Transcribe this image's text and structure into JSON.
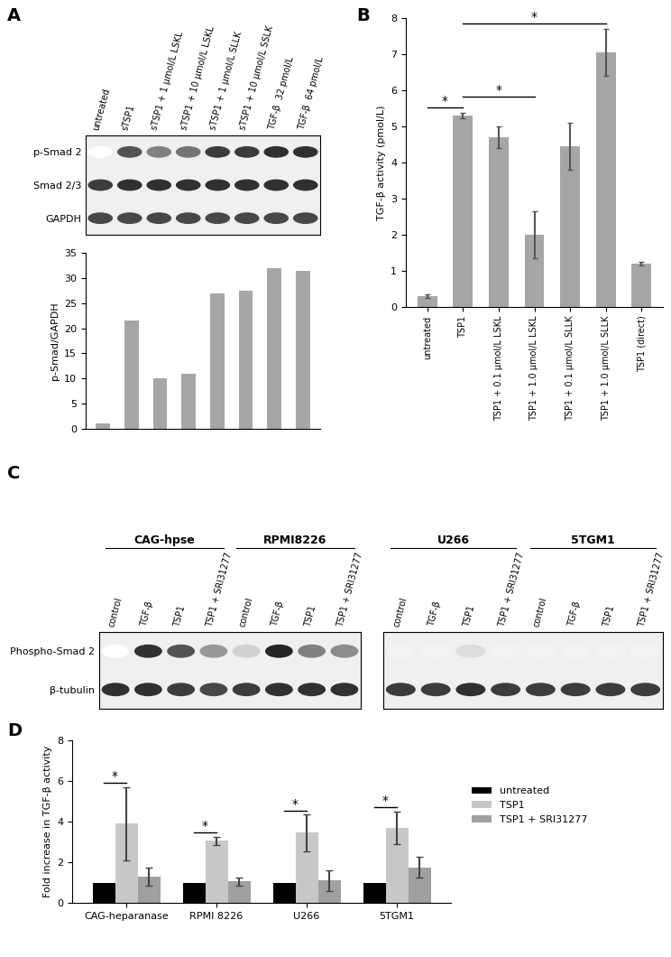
{
  "chart_data": [
    {
      "panel": "A",
      "type": "blot",
      "categories": [
        "untreated",
        "sTSP1",
        "sTSP1 + 1 µmol/L LSKL",
        "sTSP1 + 10 µmol/L LSKL",
        "sTSP1 + 1 µmol/L SLLK",
        "sTSP1 + 10 µmol/L SSLK",
        "TGF-β  32 pmol/L",
        "TGF-β  64 pmol/L"
      ],
      "series": [
        {
          "name": "p-Smad 2",
          "values": [
            0.0,
            0.75,
            0.55,
            0.6,
            0.85,
            0.85,
            0.9,
            0.9
          ]
        },
        {
          "name": "Smad 2/3",
          "values": [
            0.85,
            0.9,
            0.9,
            0.9,
            0.9,
            0.9,
            0.9,
            0.9
          ]
        },
        {
          "name": "GAPDH",
          "values": [
            0.8,
            0.8,
            0.8,
            0.8,
            0.8,
            0.8,
            0.8,
            0.8
          ]
        }
      ]
    },
    {
      "type": "bar",
      "y_label": "p-Smad/GAPDH",
      "categories": [
        null,
        null,
        null,
        null,
        null,
        null,
        null,
        null
      ],
      "values": [
        1,
        21.5,
        10,
        11,
        27,
        27.5,
        32,
        31.5
      ],
      "color": "#a6a6a6",
      "ylim": [
        0,
        35
      ],
      "yticks": [
        0,
        5,
        10,
        15,
        20,
        25,
        30,
        35
      ],
      "tick_labels": "y"
    },
    {
      "panel": "B",
      "type": "bar",
      "y_label": "TGF-β activity (pmol/L)",
      "categories": [
        "untreated",
        "TSP1",
        "TSP1 + 0.1 µmol/L LSKL",
        "TSP1 + 1.0 µmol/L LSKL",
        "TSP1 + 0.1 µmol/L SLLK",
        "TSP1 + 1.0 µmol/L SLLK",
        "TSP1 (direct)"
      ],
      "values": [
        0.3,
        5.3,
        4.7,
        2.0,
        4.45,
        7.05,
        1.2
      ],
      "errors": [
        0.05,
        0.08,
        0.3,
        0.65,
        0.65,
        0.65,
        0.05
      ],
      "color": "#a6a6a6",
      "ylim": [
        0,
        8
      ],
      "yticks": [
        0,
        1,
        2,
        3,
        4,
        5,
        6,
        7,
        8
      ],
      "significance": {
        "label": "*",
        "pairs": [
          [
            0,
            1
          ],
          [
            1,
            3
          ],
          [
            1,
            5
          ]
        ]
      }
    },
    {
      "panel": "C",
      "type": "blot",
      "categories": [
        "control",
        "TGF-β",
        "TSP1",
        "TSP1 + SRI31277"
      ],
      "images": [
        [
          {
            "name": "CAG-hpse",
            "series": [
              {
                "name": "Phospho-Smad 2",
                "values": [
                  0.0,
                  0.9,
                  0.75,
                  0.45
                ]
              },
              {
                "name": "β-tubulin",
                "values": [
                  0.9,
                  0.9,
                  0.85,
                  0.8
                ]
              }
            ]
          },
          {
            "name": "RPMI8226",
            "series": [
              {
                "name": "Phospho-Smad 2",
                "values": [
                  0.2,
                  0.95,
                  0.55,
                  0.5
                ]
              },
              {
                "name": "β-tubulin",
                "values": [
                  0.85,
                  0.9,
                  0.9,
                  0.9
                ]
              }
            ]
          }
        ],
        [
          {
            "name": "U266",
            "series": [
              {
                "name": "Phospho-Smad 2",
                "values": [
                  0.05,
                  0.05,
                  0.15,
                  0.05
                ]
              },
              {
                "name": "β-tubulin",
                "values": [
                  0.85,
                  0.85,
                  0.9,
                  0.85
                ]
              }
            ]
          },
          {
            "name": "5TGM1",
            "series": [
              {
                "name": "Phospho-Smad 2",
                "values": [
                  0.05,
                  0.05,
                  0.05,
                  0.05
                ]
              },
              {
                "name": "β-tubulin",
                "values": [
                  0.85,
                  0.85,
                  0.85,
                  0.85
                ]
              }
            ]
          }
        ]
      ]
    },
    {
      "panel": "D",
      "type": "bar",
      "y_label": "Fold increase in TGF-β activity",
      "categories": [
        "CAG-heparanase",
        "RPMI 8226",
        "U266",
        "5TGM1"
      ],
      "series": [
        {
          "name": "untreated",
          "color": "#000000",
          "values": [
            1,
            1,
            1,
            1
          ]
        },
        {
          "name": "TSP1",
          "color": "#c8c8c8",
          "values": [
            3.9,
            3.05,
            3.45,
            3.7
          ],
          "errors": [
            1.8,
            0.2,
            0.9,
            0.8
          ]
        },
        {
          "name": "TSP1 + SRI31277",
          "color": "#a0a0a0",
          "values": [
            1.3,
            1.05,
            1.1,
            1.75
          ],
          "errors": [
            0.45,
            0.2,
            0.5,
            0.5
          ]
        }
      ],
      "ylim": [
        0,
        8
      ],
      "yticks": [
        0,
        2,
        4,
        6,
        8
      ],
      "legend": "right",
      "significance": {
        "label": "*",
        "pairs": [
          [
            "untreated",
            "TSP1"
          ]
        ]
      }
    }
  ]
}
